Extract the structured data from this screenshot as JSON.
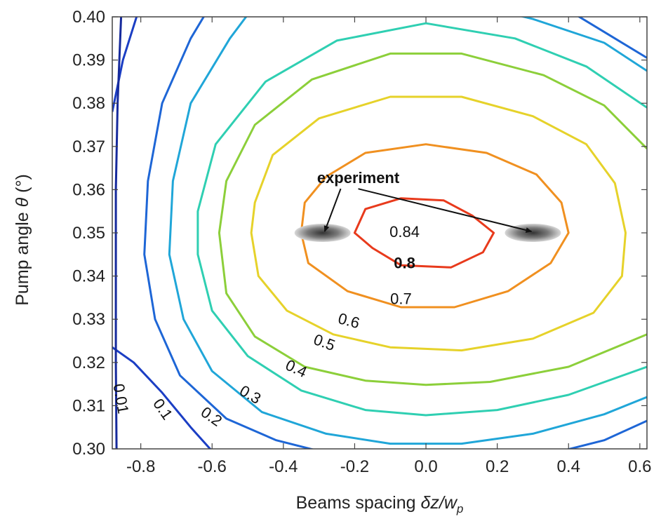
{
  "chart_data": {
    "type": "contour",
    "xlabel_parts": [
      "Beams spacing ",
      "δ",
      "z/w",
      "p"
    ],
    "ylabel_parts": [
      "Pump angle ",
      "θ",
      " (°)"
    ],
    "xlim": [
      -0.88,
      0.62
    ],
    "ylim": [
      0.3,
      0.4
    ],
    "x_ticks": [
      {
        "value": -0.8,
        "label": "-0.8"
      },
      {
        "value": -0.6,
        "label": "-0.6"
      },
      {
        "value": -0.4,
        "label": "-0.4"
      },
      {
        "value": -0.2,
        "label": "-0.2"
      },
      {
        "value": 0.0,
        "label": "0.0"
      },
      {
        "value": 0.2,
        "label": "0.2"
      },
      {
        "value": 0.4,
        "label": "0.4"
      },
      {
        "value": 0.6,
        "label": "0.6"
      }
    ],
    "y_ticks": [
      {
        "value": 0.3,
        "label": "0.30"
      },
      {
        "value": 0.31,
        "label": "0.31"
      },
      {
        "value": 0.32,
        "label": "0.32"
      },
      {
        "value": 0.33,
        "label": "0.33"
      },
      {
        "value": 0.34,
        "label": "0.34"
      },
      {
        "value": 0.35,
        "label": "0.35"
      },
      {
        "value": 0.36,
        "label": "0.36"
      },
      {
        "value": 0.37,
        "label": "0.37"
      },
      {
        "value": 0.38,
        "label": "0.38"
      },
      {
        "value": 0.39,
        "label": "0.39"
      },
      {
        "value": 0.4,
        "label": "0.40"
      }
    ],
    "contours": [
      {
        "level": "0.8",
        "color": "#e83a1c",
        "points": [
          [
            -0.15,
            0.3465
          ],
          [
            -0.2,
            0.35
          ],
          [
            -0.17,
            0.3555
          ],
          [
            -0.07,
            0.358
          ],
          [
            0.05,
            0.3575
          ],
          [
            0.13,
            0.354
          ],
          [
            0.19,
            0.35
          ],
          [
            0.16,
            0.3455
          ],
          [
            0.07,
            0.342
          ],
          [
            -0.07,
            0.3425
          ]
        ]
      },
      {
        "level": "0.7",
        "color": "#f09020",
        "points": [
          [
            0.4,
            0.35
          ],
          [
            0.38,
            0.357
          ],
          [
            0.31,
            0.3635
          ],
          [
            0.17,
            0.3685
          ],
          [
            0.0,
            0.3705
          ],
          [
            -0.17,
            0.3685
          ],
          [
            -0.28,
            0.363
          ],
          [
            -0.34,
            0.357
          ],
          [
            -0.35,
            0.35
          ],
          [
            -0.33,
            0.343
          ],
          [
            -0.22,
            0.3365
          ],
          [
            -0.07,
            0.3328
          ],
          [
            0.08,
            0.3328
          ],
          [
            0.23,
            0.3365
          ],
          [
            0.35,
            0.343
          ]
        ]
      },
      {
        "level": "0.6",
        "color": "#e6d22a",
        "points": [
          [
            0.56,
            0.35
          ],
          [
            0.53,
            0.3615
          ],
          [
            0.45,
            0.3705
          ],
          [
            0.3,
            0.377
          ],
          [
            0.1,
            0.3815
          ],
          [
            -0.1,
            0.3815
          ],
          [
            -0.3,
            0.3765
          ],
          [
            -0.43,
            0.368
          ],
          [
            -0.48,
            0.357
          ],
          [
            -0.49,
            0.35
          ],
          [
            -0.47,
            0.34
          ],
          [
            -0.39,
            0.332
          ],
          [
            -0.26,
            0.3265
          ],
          [
            -0.1,
            0.3235
          ],
          [
            0.1,
            0.3228
          ],
          [
            0.3,
            0.3255
          ],
          [
            0.47,
            0.3315
          ],
          [
            0.55,
            0.34
          ]
        ]
      },
      {
        "level": "0.5",
        "color": "#8ccf3a",
        "points": [
          [
            0.62,
            0.3695
          ],
          [
            0.5,
            0.3795
          ],
          [
            0.33,
            0.3865
          ],
          [
            0.1,
            0.3915
          ],
          [
            -0.1,
            0.3915
          ],
          [
            -0.32,
            0.3855
          ],
          [
            -0.48,
            0.375
          ],
          [
            -0.56,
            0.362
          ],
          [
            -0.58,
            0.35
          ],
          [
            -0.56,
            0.336
          ],
          [
            -0.48,
            0.326
          ],
          [
            -0.34,
            0.319
          ],
          [
            -0.17,
            0.3158
          ],
          [
            0.0,
            0.3148
          ],
          [
            0.18,
            0.3155
          ],
          [
            0.4,
            0.319
          ],
          [
            0.62,
            0.3265
          ]
        ]
      },
      {
        "level": "0.4",
        "color": "#2fcfb2",
        "points": [
          [
            0.62,
            0.379
          ],
          [
            0.45,
            0.3885
          ],
          [
            0.25,
            0.395
          ],
          [
            0.0,
            0.3985
          ],
          [
            -0.25,
            0.3945
          ],
          [
            -0.45,
            0.385
          ],
          [
            -0.59,
            0.3705
          ],
          [
            -0.64,
            0.355
          ],
          [
            -0.64,
            0.345
          ],
          [
            -0.6,
            0.332
          ],
          [
            -0.5,
            0.3215
          ],
          [
            -0.35,
            0.3135
          ],
          [
            -0.17,
            0.309
          ],
          [
            0.0,
            0.3078
          ],
          [
            0.2,
            0.309
          ],
          [
            0.4,
            0.3125
          ],
          [
            0.62,
            0.319
          ]
        ]
      },
      {
        "level": "0.3",
        "color": "#20a6d8",
        "points": [
          [
            0.62,
            0.3875
          ],
          [
            0.5,
            0.394
          ],
          [
            0.3,
            0.3995
          ],
          [
            0.25,
            0.4005
          ],
          [
            -0.5,
            0.4005
          ],
          [
            -0.55,
            0.395
          ],
          [
            -0.66,
            0.38
          ],
          [
            -0.71,
            0.362
          ],
          [
            -0.72,
            0.345
          ],
          [
            -0.68,
            0.33
          ],
          [
            -0.6,
            0.318
          ],
          [
            -0.46,
            0.3085
          ],
          [
            -0.28,
            0.3035
          ],
          [
            -0.1,
            0.3012
          ],
          [
            0.1,
            0.3012
          ],
          [
            0.3,
            0.3035
          ],
          [
            0.5,
            0.308
          ],
          [
            0.62,
            0.312
          ]
        ]
      },
      {
        "level": "0.2",
        "color": "#1e66d6",
        "points": [
          [
            0.62,
            0.3905
          ],
          [
            0.52,
            0.3955
          ],
          [
            0.42,
            0.4005
          ],
          [
            -0.62,
            0.4005
          ],
          [
            -0.66,
            0.395
          ],
          [
            -0.74,
            0.38
          ],
          [
            -0.78,
            0.362
          ],
          [
            -0.79,
            0.345
          ],
          [
            -0.76,
            0.33
          ],
          [
            -0.69,
            0.317
          ],
          [
            -0.56,
            0.307
          ],
          [
            -0.42,
            0.302
          ],
          [
            -0.3,
            0.2995
          ],
          [
            0.38,
            0.2995
          ],
          [
            0.5,
            0.302
          ],
          [
            0.62,
            0.3065
          ]
        ]
      },
      {
        "level": "0.1",
        "color": "#1b3ec4",
        "points": [
          [
            -0.81,
            0.4005
          ],
          [
            -0.85,
            0.39
          ],
          [
            -0.88,
            0.378
          ]
        ]
      },
      {
        "level": "0.1",
        "color": "#1b3ec4",
        "points": [
          [
            -0.88,
            0.3235
          ],
          [
            -0.82,
            0.32
          ],
          [
            -0.74,
            0.313
          ],
          [
            -0.66,
            0.305
          ],
          [
            -0.6,
            0.2995
          ]
        ]
      },
      {
        "level": "0.01",
        "color": "#162a9c",
        "points": [
          [
            -0.855,
            0.4005
          ],
          [
            -0.865,
            0.38
          ],
          [
            -0.87,
            0.36
          ],
          [
            -0.87,
            0.34
          ],
          [
            -0.87,
            0.32
          ],
          [
            -0.868,
            0.2995
          ]
        ]
      }
    ],
    "contour_labels": [
      {
        "text": "0.84",
        "x": -0.06,
        "y": 0.349,
        "rotate": 0,
        "bold": false
      },
      {
        "text": "0.8",
        "x": -0.06,
        "y": 0.3418,
        "rotate": 0,
        "bold": true
      },
      {
        "text": "0.7",
        "x": -0.07,
        "y": 0.3335,
        "rotate": 0,
        "bold": false
      },
      {
        "text": "0.6",
        "x": -0.22,
        "y": 0.3285,
        "rotate": 15,
        "bold": false
      },
      {
        "text": "0.5",
        "x": -0.29,
        "y": 0.3235,
        "rotate": 20,
        "bold": false
      },
      {
        "text": "0.4",
        "x": -0.37,
        "y": 0.3175,
        "rotate": 25,
        "bold": false
      },
      {
        "text": "0.3",
        "x": -0.5,
        "y": 0.3115,
        "rotate": 30,
        "bold": false
      },
      {
        "text": "0.2",
        "x": -0.61,
        "y": 0.3065,
        "rotate": 35,
        "bold": false
      },
      {
        "text": "0.1",
        "x": -0.75,
        "y": 0.3085,
        "rotate": 55,
        "bold": false
      },
      {
        "text": "0.01",
        "x": -0.87,
        "y": 0.3114,
        "rotate": 80,
        "bold": false
      }
    ],
    "experiment_points": [
      {
        "x": -0.29,
        "y": 0.35
      },
      {
        "x": 0.3,
        "y": 0.35
      }
    ],
    "annotation": {
      "text": "experiment",
      "x": -0.19,
      "y": 0.3615
    }
  }
}
